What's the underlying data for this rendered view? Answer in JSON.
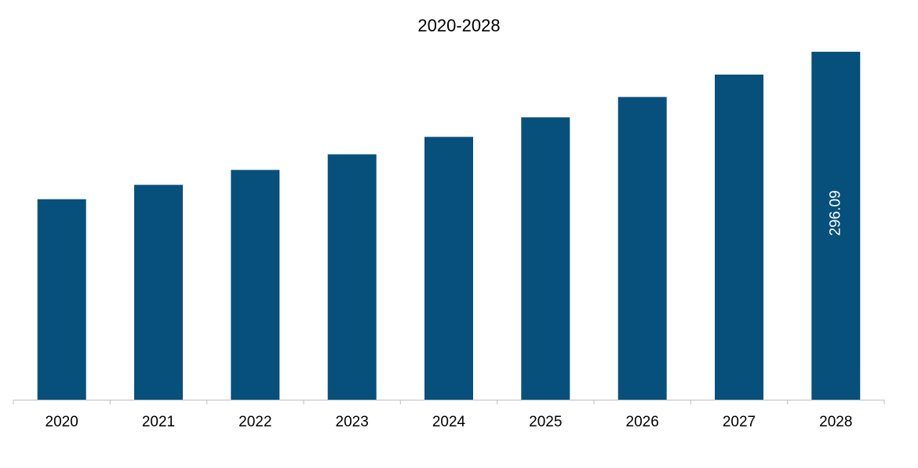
{
  "chart_data": {
    "type": "bar",
    "title": "2020-2028",
    "xlabel": "",
    "ylabel": "",
    "categories": [
      "2020",
      "2021",
      "2022",
      "2023",
      "2024",
      "2025",
      "2026",
      "2027",
      "2028"
    ],
    "values": [
      170.6,
      182.8,
      195.5,
      208.8,
      223.6,
      240.3,
      257.6,
      276.6,
      296.09
    ],
    "data_labels": [
      "",
      "",
      "",
      "",
      "",
      "",
      "",
      "",
      "296.09"
    ],
    "ylim": [
      0,
      300
    ],
    "grid": false,
    "legend": "none",
    "colors": {
      "bar": "#07507B",
      "axis": "#BFBFBF",
      "data_label": "#FFFFFF",
      "text": "#000000"
    }
  }
}
